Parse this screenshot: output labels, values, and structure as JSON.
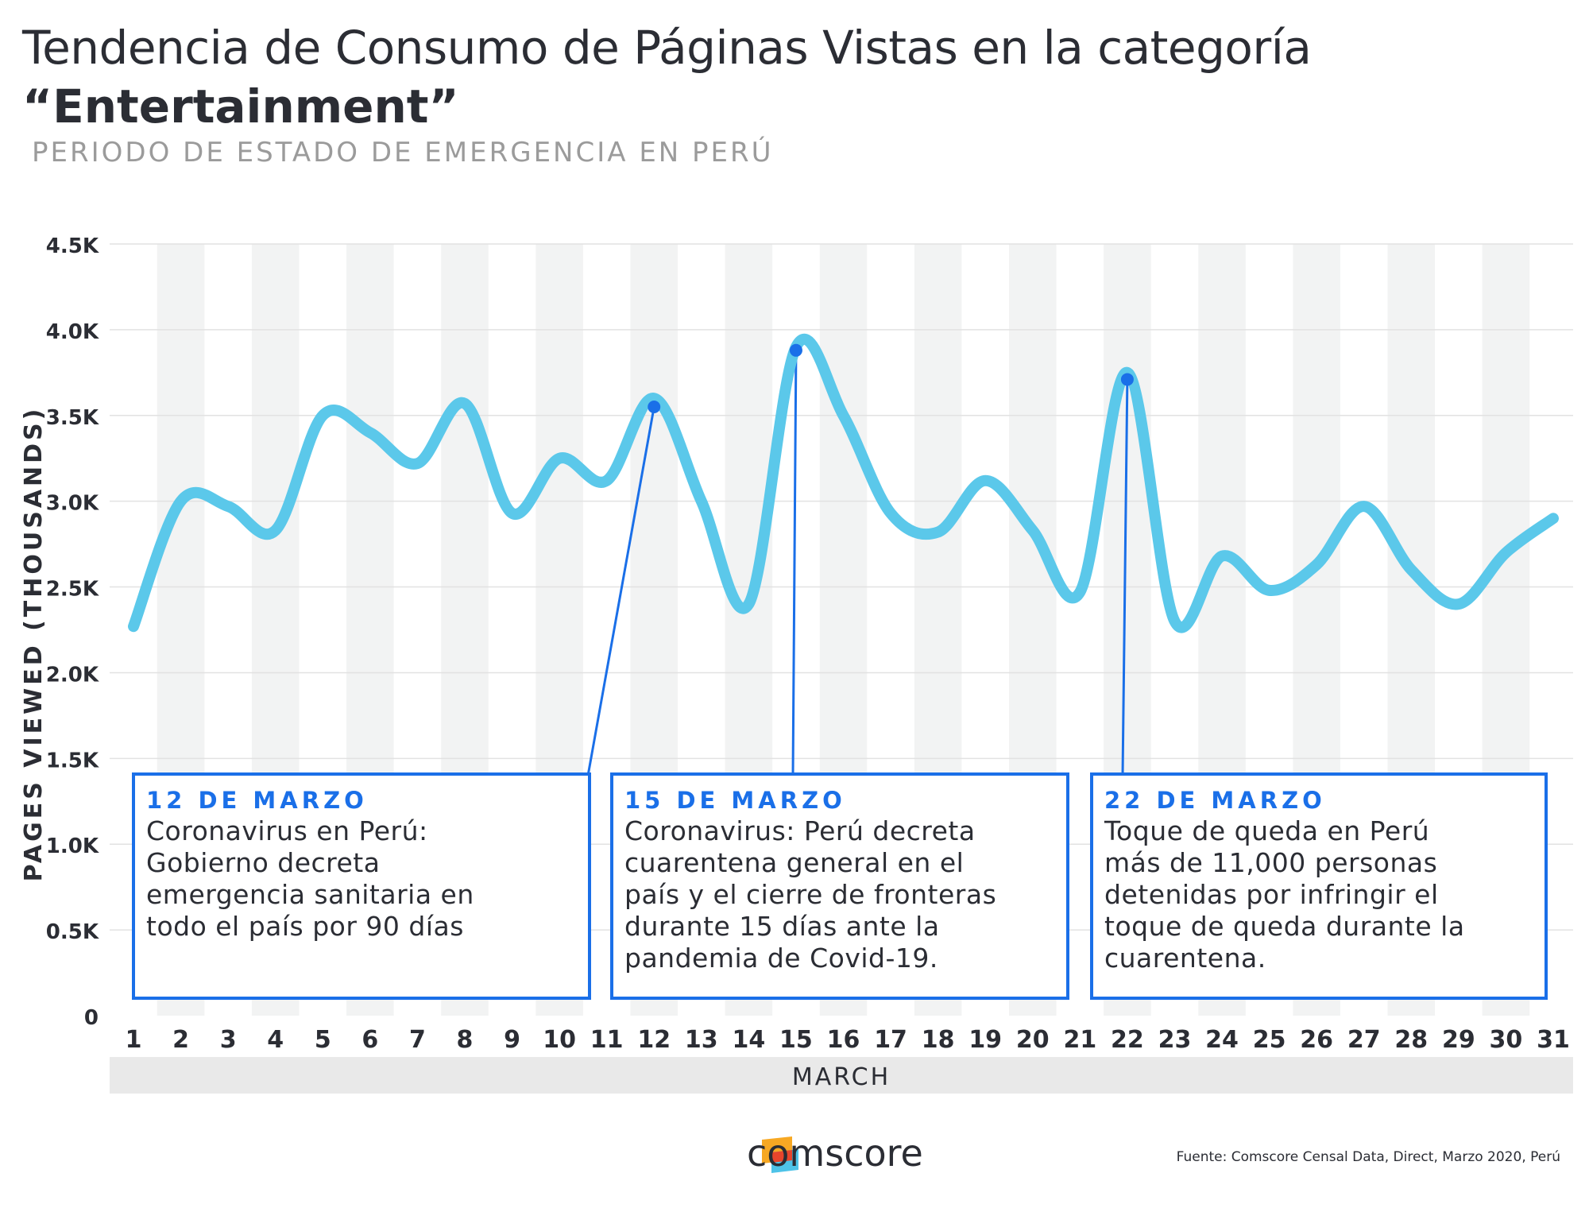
{
  "header": {
    "title_line1": "Tendencia de Consumo de Páginas Vistas en la categoría",
    "title_line2": "“Entertainment”",
    "subtitle": "PERIODO DE ESTADO DE EMERGENCIA EN PERÚ"
  },
  "chart_data": {
    "type": "line",
    "ylabel": "PAGES VIEWED (THOUSANDS)",
    "xlabel": "MARCH",
    "ylim": [
      0,
      4.5
    ],
    "y_ticks": [
      "0",
      "0.5K",
      "1.0K",
      "1.5K",
      "2.0K",
      "2.5K",
      "3.0K",
      "3.5K",
      "4.0K",
      "4.5K"
    ],
    "y_tick_values": [
      0,
      0.5,
      1.0,
      1.5,
      2.0,
      2.5,
      3.0,
      3.5,
      4.0,
      4.5
    ],
    "x": [
      1,
      2,
      3,
      4,
      5,
      6,
      7,
      8,
      9,
      10,
      11,
      12,
      13,
      14,
      15,
      16,
      17,
      18,
      19,
      20,
      21,
      22,
      23,
      24,
      25,
      26,
      27,
      28,
      29,
      30,
      31
    ],
    "x_labels": [
      "1",
      "2",
      "3",
      "4",
      "5",
      "6",
      "7",
      "8",
      "9",
      "10",
      "11",
      "12",
      "13",
      "14",
      "15",
      "16",
      "17",
      "18",
      "19",
      "20",
      "21",
      "22",
      "23",
      "24",
      "25",
      "26",
      "27",
      "28",
      "29",
      "30",
      "31"
    ],
    "series": [
      {
        "color": "#5bc8ea",
        "values": [
          2.27,
          3.0,
          2.97,
          2.83,
          3.5,
          3.4,
          3.22,
          3.57,
          2.93,
          3.25,
          3.12,
          3.6,
          3.0,
          2.4,
          3.9,
          3.5,
          2.93,
          2.82,
          3.12,
          2.83,
          2.47,
          3.75,
          2.3,
          2.68,
          2.48,
          2.63,
          2.97,
          2.6,
          2.4,
          2.7,
          2.9
        ]
      }
    ],
    "grid": true,
    "alternating_column_bands": true,
    "annotations": [
      {
        "x": 12,
        "y": 3.55,
        "date": "12 DE MARZO",
        "text": [
          "Coronavirus en Perú:",
          "Gobierno decreta",
          "emergencia sanitaria en",
          "todo el país por 90 días"
        ]
      },
      {
        "x": 15,
        "y": 3.88,
        "date": "15 DE MARZO",
        "text": [
          "Coronavirus: Perú decreta",
          "cuarentena general en el",
          "país y el cierre de fronteras",
          "durante 15 días ante la",
          "pandemia de Covid-19."
        ]
      },
      {
        "x": 22,
        "y": 3.71,
        "date": "22 DE MARZO",
        "text": [
          "Toque de queda en Perú",
          "más de 11,000 personas",
          "detenidas por infringir el",
          "toque de queda durante la",
          "cuarentena."
        ]
      }
    ],
    "annotation_color": "#1a6fe8"
  },
  "footer": {
    "brand": "comscore",
    "source": "Fuente: Comscore Censal Data, Direct, Marzo 2020, Perú"
  },
  "colors": {
    "text": "#2b2d34",
    "subtitle": "#9b9b9b",
    "line": "#5bc8ea",
    "accent": "#1a6fe8",
    "band": "#f2f3f3",
    "xaxis_bar": "#e9e9e9",
    "logo_orange": "#f7a823",
    "logo_red": "#e8452c",
    "logo_blue": "#4ec3e8"
  }
}
